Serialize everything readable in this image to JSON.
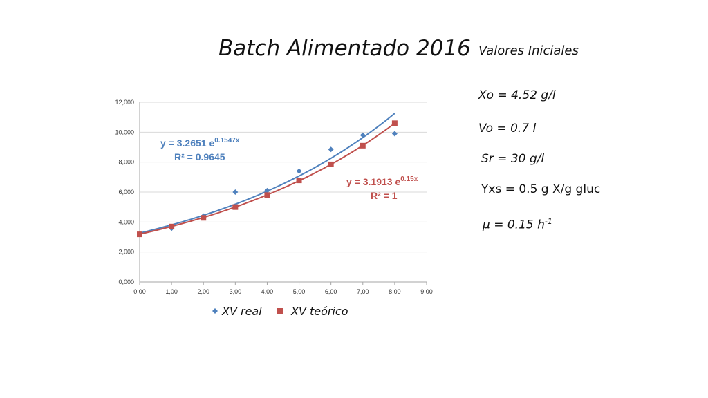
{
  "title": "Batch Alimentado 2016",
  "params": {
    "heading": "Valores Iniciales",
    "xo": "Xo = 4.52 g/l",
    "vo": "Vo = 0.7 l",
    "sr": "Sr = 30 g/l",
    "yxs": "Yxs = 0.5 g X/g gluc",
    "mu_base": "μ = 0.15 h",
    "mu_exp": "-1"
  },
  "colors": {
    "real": "#4f81bd",
    "teorico": "#c0504d",
    "grid": "#d9d9d9",
    "axis": "#a6a6a6"
  },
  "chart_data": {
    "type": "scatter",
    "xlim": [
      0,
      9
    ],
    "ylim": [
      0,
      12000
    ],
    "x_ticks": [
      "0,00",
      "1,00",
      "2,00",
      "3,00",
      "4,00",
      "5,00",
      "6,00",
      "7,00",
      "8,00",
      "9,00"
    ],
    "y_ticks": [
      "0,000",
      "2,000",
      "4,000",
      "6,000",
      "8,000",
      "10,000",
      "12,000"
    ],
    "grid": "horizontal",
    "legend_position": "bottom",
    "series": [
      {
        "name": "XV real",
        "marker": "diamond",
        "x": [
          0,
          1,
          2,
          3,
          4,
          5,
          6,
          7,
          8
        ],
        "y": [
          3200,
          3580,
          4400,
          6000,
          6100,
          7400,
          8850,
          9800,
          9900
        ],
        "trendline": {
          "type": "exponential",
          "a": 3.2651,
          "b": 0.1547,
          "x_range": [
            0,
            8
          ],
          "equation_base": "y = 3.2651 e",
          "equation_exp": "0.1547x",
          "r2": "R² = 0.9645"
        }
      },
      {
        "name": "XV teórico",
        "marker": "square",
        "x": [
          0,
          1,
          2,
          3,
          4,
          5,
          6,
          7,
          8
        ],
        "y": [
          3180,
          3700,
          4280,
          5000,
          5800,
          6780,
          7850,
          9100,
          10600
        ],
        "trendline": {
          "type": "exponential",
          "a": 3.1913,
          "b": 0.15,
          "x_range": [
            0,
            8
          ],
          "equation_base": "y = 3.1913 e",
          "equation_exp": "0.15x",
          "r2": "R² = 1"
        }
      }
    ]
  }
}
